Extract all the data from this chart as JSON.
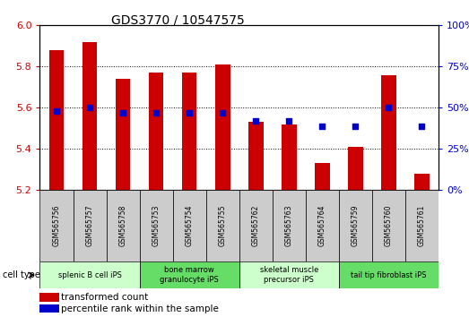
{
  "title": "GDS3770 / 10547575",
  "samples": [
    "GSM565756",
    "GSM565757",
    "GSM565758",
    "GSM565753",
    "GSM565754",
    "GSM565755",
    "GSM565762",
    "GSM565763",
    "GSM565764",
    "GSM565759",
    "GSM565760",
    "GSM565761"
  ],
  "transformed_count": [
    5.88,
    5.92,
    5.74,
    5.77,
    5.77,
    5.81,
    5.53,
    5.52,
    5.33,
    5.41,
    5.76,
    5.28
  ],
  "percentile_rank": [
    48,
    50,
    47,
    47,
    47,
    47,
    42,
    42,
    39,
    39,
    50,
    39
  ],
  "ylim_left": [
    5.2,
    6.0
  ],
  "ylim_right": [
    0,
    100
  ],
  "yticks_left": [
    5.2,
    5.4,
    5.6,
    5.8,
    6.0
  ],
  "yticks_right": [
    0,
    25,
    50,
    75,
    100
  ],
  "bar_color": "#cc0000",
  "dot_color": "#0000cc",
  "bar_width": 0.45,
  "cell_type_groups": [
    {
      "label": "splenic B cell iPS",
      "indices": [
        0,
        1,
        2
      ],
      "color": "#ccffcc"
    },
    {
      "label": "bone marrow\ngranulocyte iPS",
      "indices": [
        3,
        4,
        5
      ],
      "color": "#66dd66"
    },
    {
      "label": "skeletal muscle\nprecursor iPS",
      "indices": [
        6,
        7,
        8
      ],
      "color": "#ccffcc"
    },
    {
      "label": "tail tip fibroblast iPS",
      "indices": [
        9,
        10,
        11
      ],
      "color": "#66dd66"
    }
  ],
  "cell_type_label": "cell type",
  "legend_bar_label": "transformed count",
  "legend_dot_label": "percentile rank within the sample",
  "left_ylabel_color": "#cc0000",
  "right_ylabel_color": "#0000cc",
  "sample_box_color": "#cccccc",
  "title_fontsize": 10
}
